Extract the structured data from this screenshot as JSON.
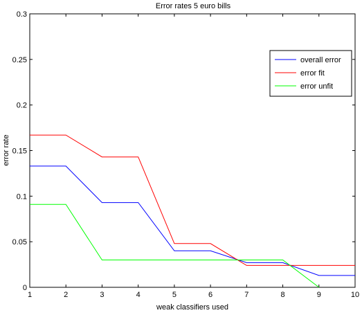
{
  "chart_data": {
    "type": "line",
    "title": "Error rates 5 euro bills",
    "xlabel": "weak classifiers used",
    "ylabel": "error rate",
    "xlim": [
      1,
      10
    ],
    "ylim": [
      0,
      0.3
    ],
    "x": [
      1,
      2,
      3,
      4,
      5,
      6,
      7,
      8,
      9,
      10
    ],
    "x_ticks": [
      "1",
      "2",
      "3",
      "4",
      "5",
      "6",
      "7",
      "8",
      "9",
      "10"
    ],
    "y_ticks": [
      "0",
      "0.05",
      "0.1",
      "0.15",
      "0.2",
      "0.25",
      "0.3"
    ],
    "y_tick_values": [
      0,
      0.05,
      0.1,
      0.15,
      0.2,
      0.25,
      0.3
    ],
    "grid": false,
    "legend_position": "top-right",
    "series": [
      {
        "name": "overall error",
        "color": "#0000ff",
        "values": [
          0.133,
          0.133,
          0.093,
          0.093,
          0.04,
          0.04,
          0.027,
          0.027,
          0.013,
          0.013
        ]
      },
      {
        "name": "error fit",
        "color": "#ff0000",
        "values": [
          0.167,
          0.167,
          0.143,
          0.143,
          0.048,
          0.048,
          0.024,
          0.024,
          0.024,
          0.024
        ]
      },
      {
        "name": "error unfit",
        "color": "#00ff00",
        "values": [
          0.091,
          0.091,
          0.03,
          0.03,
          0.03,
          0.03,
          0.03,
          0.03,
          0.0,
          null
        ]
      }
    ]
  }
}
